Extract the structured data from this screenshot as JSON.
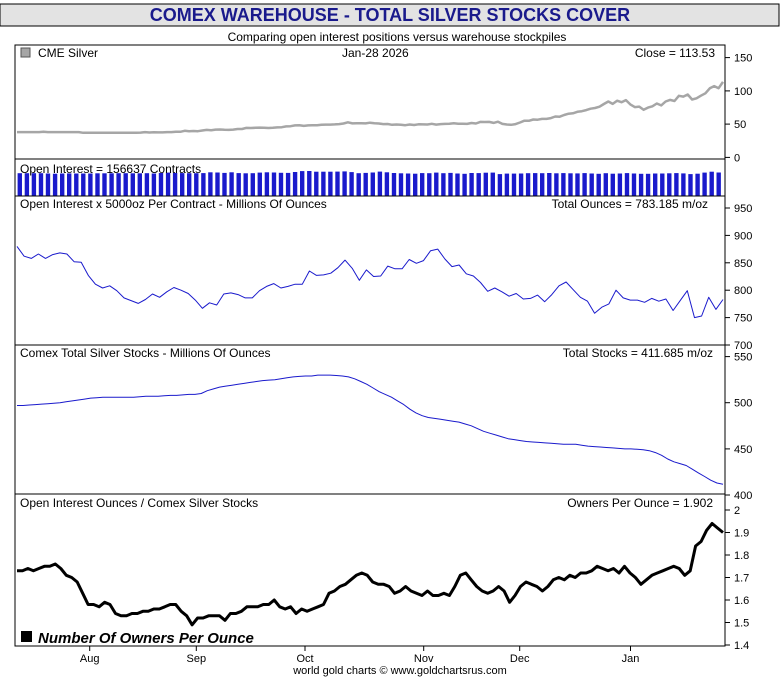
{
  "header": {
    "title": "COMEX WAREHOUSE - TOTAL SILVER STOCKS COVER",
    "subtitle": "Comparing open interest positions versus warehouse stockpiles",
    "footer": "world gold charts © www.goldchartsrus.com"
  },
  "colors": {
    "title_bg": "#e3e3e3",
    "title_text": "#1a1a8c",
    "price_line": "#a6a6a6",
    "oi_bars": "#1a1acc",
    "blue_line": "#1a1acc",
    "owners_line": "#000000"
  },
  "x_axis": {
    "labels": [
      "Aug",
      "Sep",
      "Oct",
      "Nov",
      "Dec",
      "Jan"
    ]
  },
  "chart_data": [
    {
      "type": "line",
      "id": "price",
      "legend": "CME Silver",
      "date": "Jan-28  2026",
      "readout": "Close = 113.53",
      "ylim": [
        -10,
        160
      ],
      "yticks": [
        0,
        50,
        100,
        150
      ],
      "series": [
        {
          "name": "CME Silver",
          "values": [
            38,
            38,
            38,
            38,
            38,
            38,
            38.5,
            38,
            38,
            38,
            38,
            38,
            38,
            38,
            38,
            37,
            37,
            37,
            37,
            37,
            37,
            37,
            37,
            37,
            37,
            37,
            37,
            37,
            37.3,
            38,
            37.4,
            37.7,
            37.6,
            37.5,
            38,
            38,
            38.6,
            38.4,
            39.9,
            39.3,
            39.7,
            39.3,
            40.4,
            41.3,
            40.8,
            41.8,
            41.9,
            41.4,
            41.3,
            41.7,
            42.6,
            42.6,
            44.3,
            44.2,
            44.5,
            44.8,
            44.6,
            44.2,
            44.5,
            45,
            45.4,
            46.5,
            46.9,
            48.1,
            48.2,
            47.3,
            48.1,
            48.4,
            48.3,
            49.1,
            49.3,
            49.2,
            49.6,
            50.1,
            51,
            52.7,
            51.1,
            51.2,
            51.4,
            51.1,
            52.1,
            51.3,
            51,
            50.1,
            50.2,
            49,
            49.5,
            48.9,
            48.3,
            49.4,
            48.6,
            49.8,
            49.6,
            49.4,
            50.5,
            49.2,
            50,
            50.3,
            50.7,
            51.3,
            50.6,
            50.7,
            50.3,
            51.7,
            51,
            53.3,
            53.2,
            53.4,
            51.9,
            53.6,
            50.3,
            49.5,
            48.9,
            50.1,
            52.5,
            55.1,
            55,
            57,
            56.7,
            57.8,
            57.8,
            59.1,
            61.5,
            61.2,
            63.7,
            65.6,
            66.3,
            68.6,
            69.5,
            71.1,
            73.2,
            74.2,
            76.2,
            80.2,
            84,
            80.4,
            85.2,
            83,
            86.2,
            79.7,
            75.6,
            76.4,
            71.5,
            74.9,
            76.8,
            81,
            78.1,
            84,
            86.5,
            84.8,
            92.6,
            91.4,
            94.5,
            87,
            88.9,
            92.7,
            96.4,
            103.9,
            107.2,
            104.1,
            113.5
          ]
        }
      ]
    },
    {
      "type": "bar",
      "id": "open_interest",
      "label": "Open Interest = 156637 Contracts",
      "values": [
        152000,
        152500,
        152000,
        152000,
        150000,
        149000,
        150500,
        151000,
        150500,
        150000,
        150000,
        151500,
        151500,
        151500,
        152500,
        152500,
        151500,
        151500,
        152000,
        150000,
        153500,
        156000,
        154000,
        153000,
        152000,
        152000,
        153000,
        158000,
        157000,
        154000,
        158000,
        153000,
        151500,
        152000,
        156000,
        158000,
        157000,
        155000,
        154000,
        160000,
        166500,
        167000,
        162000,
        162000,
        162000,
        163000,
        164500,
        159500,
        152000,
        154000,
        157000,
        163000,
        158000,
        153500,
        151500,
        150500,
        149000,
        153000,
        152500,
        156000,
        152000,
        154500,
        150500,
        148000,
        153500,
        153000,
        155500,
        156000,
        146500,
        149500,
        149500,
        150500,
        152000,
        153000,
        152000,
        153500,
        151500,
        153000,
        151500,
        151000,
        153000,
        150500,
        148500,
        152500,
        149000,
        150500,
        153000,
        150000,
        148500,
        148000,
        150500,
        150000,
        151500,
        153000,
        151000,
        146000,
        149000,
        156000,
        162000,
        157000
      ]
    },
    {
      "type": "line",
      "id": "oi_ounces",
      "label": "Open Interest x 5000oz Per Contract - Millions Of Ounces",
      "readout": "Total Ounces = 783.185 m/oz",
      "ylim": [
        700,
        950
      ],
      "yticks": [
        700,
        750,
        800,
        850,
        900,
        950
      ],
      "series": [
        {
          "name": "Open Interest Ounces",
          "values": [
            880,
            862,
            858,
            866,
            858,
            865,
            868,
            866,
            852,
            851,
            827,
            811,
            804,
            808,
            799,
            786,
            781,
            776,
            783,
            793,
            787,
            797,
            805,
            800,
            794,
            782,
            767,
            777,
            773,
            793,
            795,
            792,
            786,
            786,
            799,
            807,
            812,
            804,
            807,
            811,
            811,
            835,
            827,
            828,
            831,
            841,
            855,
            840,
            818,
            837,
            825,
            826,
            844,
            839,
            839,
            856,
            849,
            854,
            872,
            875,
            857,
            843,
            846,
            830,
            826,
            814,
            798,
            804,
            797,
            789,
            794,
            784,
            785,
            791,
            779,
            792,
            808,
            815,
            801,
            787,
            780,
            758,
            769,
            775,
            800,
            786,
            782,
            782,
            778,
            785,
            780,
            784,
            763,
            781,
            799,
            750,
            753,
            787,
            765,
            783
          ]
        }
      ]
    },
    {
      "type": "line",
      "id": "comex_stocks",
      "label": "Comex Total Silver Stocks - Millions Of Ounces",
      "readout": "Total Stocks = 411.685 m/oz",
      "ylim": [
        400,
        555
      ],
      "yticks": [
        400,
        450,
        500,
        550
      ],
      "series": [
        {
          "name": "Comex Total Silver Stocks",
          "values": [
            497,
            497,
            497.5,
            498,
            498.5,
            499,
            499.5,
            500,
            501,
            502,
            503,
            504,
            505,
            505.5,
            506,
            506,
            506,
            506,
            506,
            506,
            506.5,
            507,
            507,
            507,
            507.5,
            508,
            508,
            508.5,
            509,
            509,
            510,
            513,
            515,
            517,
            518,
            519,
            520,
            521,
            522,
            523,
            524,
            524.5,
            525,
            526,
            527,
            528,
            528.5,
            529,
            529,
            530,
            530,
            530,
            529.5,
            529,
            528,
            526,
            523,
            520,
            516,
            512,
            509,
            506,
            502,
            498,
            493,
            489,
            486,
            484,
            483,
            482,
            481,
            480,
            479,
            477,
            475,
            472,
            469,
            467,
            465,
            463,
            461,
            460,
            459,
            458,
            457.5,
            457,
            456.5,
            456,
            455.5,
            455,
            455,
            455,
            454,
            453,
            452.5,
            452,
            451.5,
            451,
            450.5,
            450,
            450,
            449.5,
            449,
            448,
            446,
            443,
            439,
            436,
            434,
            432,
            428,
            424,
            420,
            416,
            413,
            411.7
          ]
        }
      ]
    },
    {
      "type": "line",
      "id": "owners_per_ounce",
      "label": "Open Interest Ounces / Comex Silver Stocks",
      "readout": "Owners Per Ounce = 1.902",
      "legend": "Number Of Owners Per Ounce",
      "ylim": [
        1.4,
        2.0
      ],
      "yticks": [
        1.4,
        1.5,
        1.6,
        1.7,
        1.8,
        1.9,
        2.0
      ],
      "series": [
        {
          "name": "Number Of Owners Per Ounce",
          "values": [
            1.73,
            1.73,
            1.74,
            1.73,
            1.74,
            1.75,
            1.75,
            1.76,
            1.74,
            1.71,
            1.7,
            1.68,
            1.63,
            1.58,
            1.58,
            1.57,
            1.59,
            1.58,
            1.54,
            1.53,
            1.53,
            1.54,
            1.54,
            1.55,
            1.55,
            1.56,
            1.56,
            1.57,
            1.58,
            1.58,
            1.55,
            1.53,
            1.49,
            1.52,
            1.52,
            1.53,
            1.53,
            1.53,
            1.51,
            1.54,
            1.54,
            1.55,
            1.57,
            1.57,
            1.57,
            1.58,
            1.58,
            1.6,
            1.57,
            1.56,
            1.57,
            1.54,
            1.56,
            1.55,
            1.56,
            1.57,
            1.58,
            1.63,
            1.64,
            1.66,
            1.67,
            1.69,
            1.71,
            1.72,
            1.71,
            1.68,
            1.67,
            1.67,
            1.66,
            1.63,
            1.64,
            1.66,
            1.64,
            1.63,
            1.62,
            1.64,
            1.62,
            1.62,
            1.63,
            1.62,
            1.66,
            1.71,
            1.72,
            1.69,
            1.66,
            1.64,
            1.63,
            1.64,
            1.66,
            1.64,
            1.59,
            1.62,
            1.66,
            1.68,
            1.67,
            1.66,
            1.64,
            1.66,
            1.69,
            1.7,
            1.69,
            1.71,
            1.7,
            1.72,
            1.72,
            1.73,
            1.75,
            1.74,
            1.73,
            1.74,
            1.72,
            1.75,
            1.72,
            1.7,
            1.67,
            1.69,
            1.71,
            1.72,
            1.73,
            1.74,
            1.75,
            1.74,
            1.71,
            1.73,
            1.84,
            1.86,
            1.91,
            1.94,
            1.92,
            1.9
          ]
        }
      ]
    }
  ]
}
